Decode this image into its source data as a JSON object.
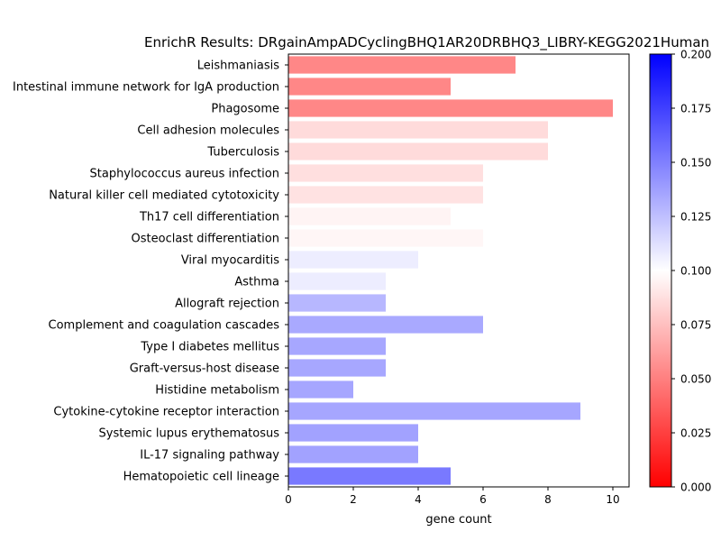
{
  "chart_data": {
    "type": "bar",
    "orientation": "horizontal",
    "title": "EnrichR Results: DRgainAmpADCyclingBHQ1AR20DRBHQ3_LIBRY-KEGG2021Human",
    "xlabel": "gene count",
    "ylabel": "",
    "xlim": [
      0,
      10.5
    ],
    "xticks": [
      0,
      2,
      4,
      6,
      8,
      10
    ],
    "grid": false,
    "colormap": "bwr_r",
    "colorbar": {
      "min": 0.0,
      "max": 0.2,
      "ticks": [
        "0.000",
        "0.025",
        "0.050",
        "0.075",
        "0.100",
        "0.125",
        "0.150",
        "0.175",
        "0.200"
      ],
      "low_color": "#ff0000",
      "mid_color": "#ffffff",
      "high_color": "#0000ff"
    },
    "categories": [
      "Leishmaniasis",
      "Intestinal immune network for IgA production",
      "Phagosome",
      "Cell adhesion molecules",
      "Tuberculosis",
      "Staphylococcus aureus infection",
      "Natural killer cell mediated cytotoxicity",
      "Th17 cell differentiation",
      "Osteoclast differentiation",
      "Viral myocarditis",
      "Asthma",
      "Allograft rejection",
      "Complement and coagulation cascades",
      "Type I diabetes mellitus",
      "Graft-versus-host disease",
      "Histidine metabolism",
      "Cytokine-cytokine receptor interaction",
      "Systemic lupus erythematosus",
      "IL-17 signaling pathway",
      "Hematopoietic cell lineage"
    ],
    "values": [
      7,
      5,
      10,
      8,
      8,
      6,
      6,
      5,
      6,
      4,
      3,
      3,
      6,
      3,
      3,
      2,
      9,
      4,
      4,
      5
    ],
    "color_values": [
      0.033,
      0.033,
      0.033,
      0.08,
      0.08,
      0.082,
      0.084,
      0.094,
      0.095,
      0.11,
      0.11,
      0.14,
      0.148,
      0.149,
      0.149,
      0.15,
      0.15,
      0.152,
      0.152,
      0.175
    ]
  }
}
